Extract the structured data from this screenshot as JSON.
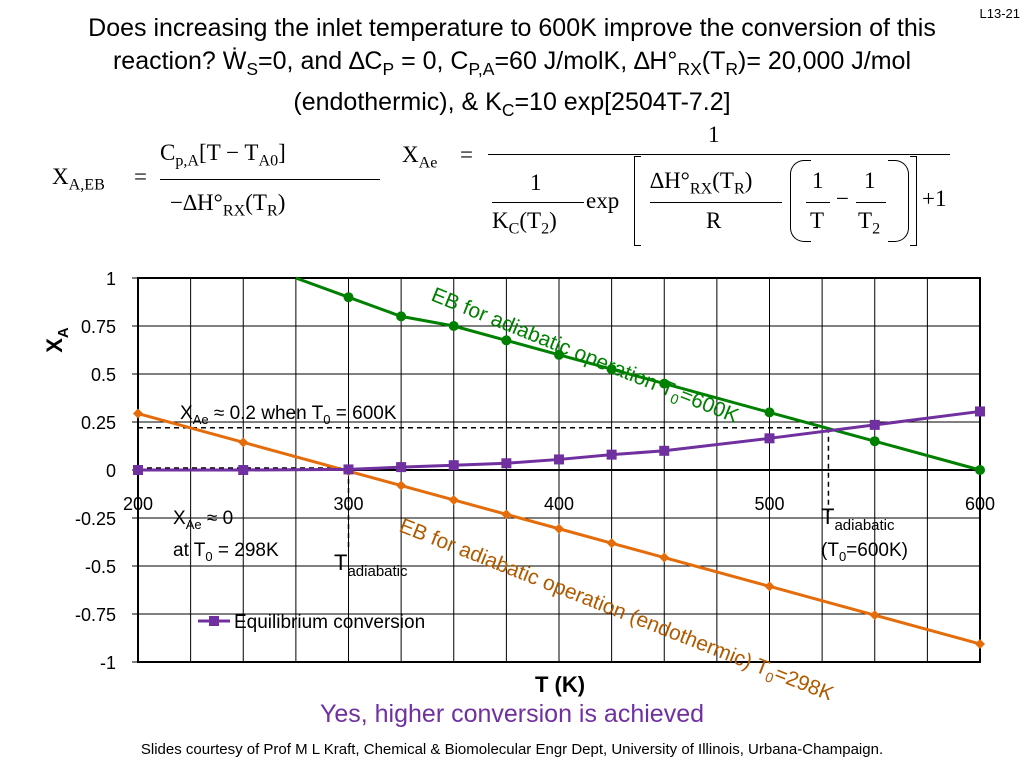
{
  "slide_number": "L13-21",
  "title": {
    "line1": "Does increasing the inlet temperature to 600K improve the conversion of this",
    "line2_prefix": "reaction?  Ẇ",
    "line2_ws_sub": "S",
    "line2_mid1": "=0, and ∆C",
    "line2_cp_sub": "P",
    "line2_mid2": " = 0, C",
    "line2_cpa_sub": "P,A",
    "line2_mid3": "=60 J/molK, ∆H°",
    "line2_rx_sub": "RX",
    "line2_mid4": "(T",
    "line2_r_sub": "R",
    "line2_end": ")= 20,000 J/mol",
    "line3_prefix": "(endothermic), &  K",
    "line3_c_sub": "C",
    "line3_end": "=10 exp[2504T-7.2]"
  },
  "equations": {
    "eb_lhs": "X",
    "eb_lhs_sub": "A,EB",
    "eb_equals": "=",
    "eb_num_c": "C",
    "eb_num_c_sub": "p,A",
    "eb_num_bracket": "[T − T",
    "eb_num_bracket_sub": "A0",
    "eb_num_close": "]",
    "eb_den": "−∆H°",
    "eb_den_sub": "RX",
    "eb_den_tail": "(T",
    "eb_den_tail_sub": "R",
    "eb_den_close": ")",
    "xae_lhs": "X",
    "xae_lhs_sub": "Ae",
    "xae_equals": "=",
    "xae_num": "1",
    "xae_one": "1",
    "xae_kc": "K",
    "xae_kc_sub": "C",
    "xae_kc_arg": "(T",
    "xae_kc_arg_sub": "2",
    "xae_kc_close": ")",
    "xae_exp": "exp",
    "xae_dh": "∆H°",
    "xae_dh_sub": "RX",
    "xae_dh_arg": "(T",
    "xae_dh_arg_sub": "R",
    "xae_dh_close": ")",
    "xae_r": "R",
    "xae_f1_num": "1",
    "xae_f1_den": "T",
    "xae_minus": "−",
    "xae_f2_num": "1",
    "xae_f2_den": "T",
    "xae_f2_den_sub": "2",
    "xae_plus1": "+1"
  },
  "chart_data": {
    "type": "line",
    "xlabel": "T (K)",
    "ylabel": "X",
    "ylabel_sub": "A",
    "xlim": [
      200,
      600
    ],
    "ylim": [
      -1,
      1
    ],
    "x_ticks": [
      "200",
      "300",
      "400",
      "500",
      "600"
    ],
    "y_ticks": [
      "1",
      "0.75",
      "0.5",
      "0.25",
      "0",
      "-0.25",
      "-0.5",
      "-0.75",
      "-1"
    ],
    "series": [
      {
        "name": "EB for adiabatic operation T0=600K",
        "color": "#008000",
        "marker": "circle",
        "x": [
          300,
          325,
          350,
          375,
          400,
          425,
          450,
          500,
          550,
          600
        ],
        "y": [
          0.9,
          0.8,
          0.75,
          0.675,
          0.6,
          0.525,
          0.45,
          0.3,
          0.15,
          0
        ]
      },
      {
        "name": "EB for adiabatic operation (endothermic) T0=298K",
        "color": "#E46C0A",
        "marker": "diamond",
        "x": [
          200,
          250,
          300,
          325,
          350,
          375,
          400,
          425,
          450,
          500,
          550,
          600
        ],
        "y": [
          0.294,
          0.144,
          -0.006,
          -0.081,
          -0.156,
          -0.231,
          -0.306,
          -0.381,
          -0.456,
          -0.606,
          -0.756,
          -0.906
        ]
      },
      {
        "name": "Equilibrium conversion",
        "color": "#7030A0",
        "marker": "square",
        "x": [
          200,
          250,
          300,
          325,
          350,
          375,
          400,
          425,
          450,
          500,
          550,
          600
        ],
        "y": [
          0,
          0,
          0.003,
          0.015,
          0.025,
          0.035,
          0.055,
          0.08,
          0.1,
          0.165,
          0.235,
          0.305
        ]
      }
    ],
    "legend": {
      "label": "Equilibrium conversion",
      "position": "bottom-left"
    },
    "annotations": {
      "green_label_main": "EB for adiabatic operation T",
      "green_label_sub": "0",
      "green_label_end": "=600K",
      "orange_label_main": "EB for adiabatic operation (endothermic) T",
      "orange_label_sub": "0",
      "orange_label_end": "=298K",
      "xae_600_pre": "X",
      "xae_600_sub": "Ae",
      "xae_600_mid": " ≈ 0.2 when T",
      "xae_600_sub2": "0",
      "xae_600_end": " = 600K",
      "xae_298_pre": "X",
      "xae_298_sub": "Ae",
      "xae_298_end": " ≈ 0",
      "xae_298_line2_pre": "at T",
      "xae_298_line2_sub": "0",
      "xae_298_line2_end": " = 298K",
      "tad1_main": "T",
      "tad1_sub": "adiabatic",
      "tad2_main": "T",
      "tad2_sub": "adiabatic",
      "tad2_line2_pre": "(T",
      "tad2_line2_sub": "0",
      "tad2_line2_end": "=600K)",
      "t_adiabatic_298": 300,
      "t_adiabatic_600": 528,
      "x_adiabatic_600": 0.22
    }
  },
  "conclusion": "Yes, higher conversion is achieved",
  "conclusion_color": "#7030A0",
  "footer": "Slides courtesy of Prof M L Kraft, Chemical & Biomolecular Engr Dept, University of Illinois, Urbana-Champaign."
}
